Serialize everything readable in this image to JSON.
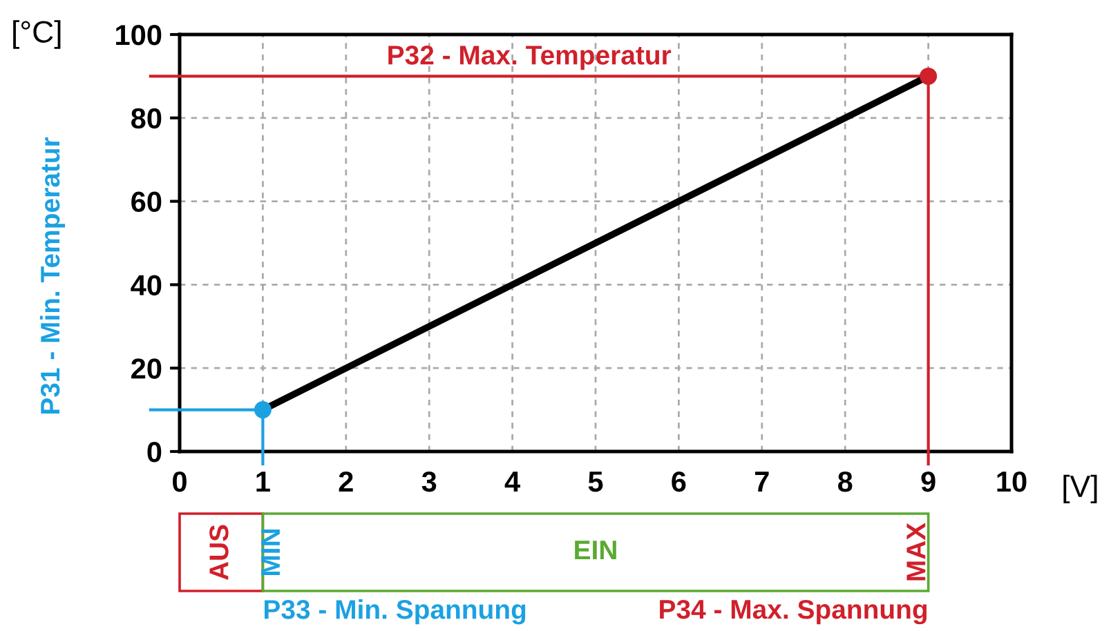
{
  "chart_data": {
    "type": "line",
    "x": [
      1,
      9
    ],
    "series": [
      {
        "color": "#000000",
        "colors": [
          "#1ba1e2",
          "#d0202a"
        ],
        "values": [
          10,
          90
        ]
      }
    ],
    "marker": "circle",
    "xlim": [
      0,
      10
    ],
    "xticks": [
      0,
      1,
      2,
      3,
      4,
      5,
      6,
      7,
      8,
      9,
      10
    ],
    "ylim": [
      0,
      100
    ],
    "yticks": [
      0,
      20,
      40,
      60,
      80,
      100
    ],
    "xlabel": "[V]",
    "ylabel": "[°C]",
    "grid": true,
    "ref_lines": [
      {
        "axis": "y",
        "value": 10,
        "label": "P31 - Min. Temperatur",
        "color": "#1ba1e2"
      },
      {
        "axis": "y",
        "value": 90,
        "label": "P32 - Max. Temperatur",
        "color": "#d0202a"
      },
      {
        "axis": "x",
        "value": 1,
        "label": "P33 - Min. Spannung",
        "color": "#1ba1e2"
      },
      {
        "axis": "x",
        "value": 9,
        "label": "P34 - Max. Spannung",
        "color": "#d0202a"
      }
    ],
    "annotations": [
      "AUS",
      "MIN",
      "EIN",
      "MAX"
    ]
  }
}
